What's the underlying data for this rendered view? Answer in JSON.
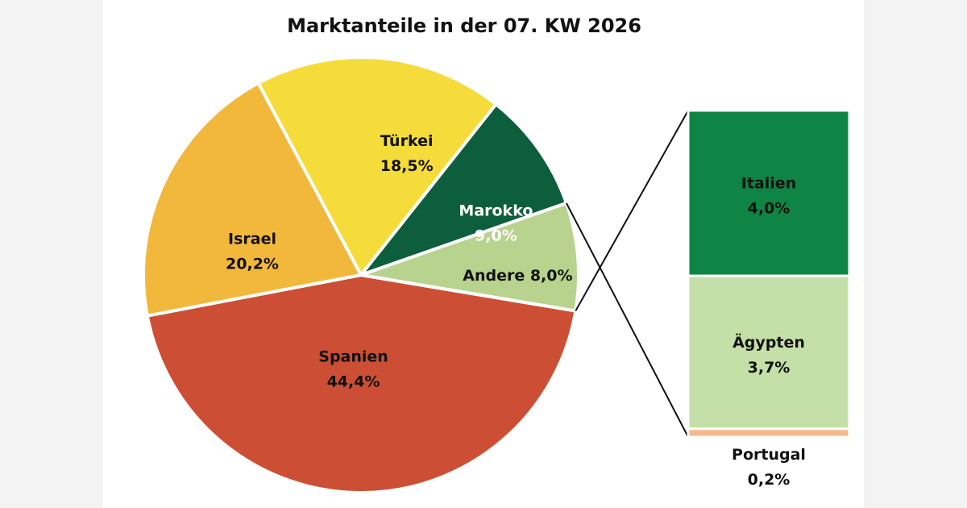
{
  "chart_data": {
    "type": "pie",
    "title": "Marktanteile in der 07. KW 2026",
    "slices": [
      {
        "name": "Spanien",
        "value": 44.4,
        "label": "44,4%",
        "color": "#cc4f35",
        "text_color": "#111111"
      },
      {
        "name": "Israel",
        "value": 20.2,
        "label": "20,2%",
        "color": "#f2b83c",
        "text_color": "#111111"
      },
      {
        "name": "Türkei",
        "value": 18.5,
        "label": "18,5%",
        "color": "#f6dc3a",
        "text_color": "#111111"
      },
      {
        "name": "Marokko",
        "value": 9.0,
        "label": "9,0%",
        "color": "#0d5e3d",
        "text_color": "#ffffff"
      },
      {
        "name": "Andere",
        "value": 8.0,
        "label": "8,0%",
        "color": "#b8d38d",
        "text_color": "#111111"
      }
    ],
    "breakdown": {
      "of": "Andere",
      "segments": [
        {
          "name": "Italien",
          "value": 4.0,
          "label": "4,0%",
          "color": "#0e8445"
        },
        {
          "name": "Ägypten",
          "value": 3.7,
          "label": "3,7%",
          "color": "#c4dfa8"
        },
        {
          "name": "Portugal",
          "value": 0.2,
          "label": "0,2%",
          "color": "#f5b98e"
        }
      ]
    }
  }
}
